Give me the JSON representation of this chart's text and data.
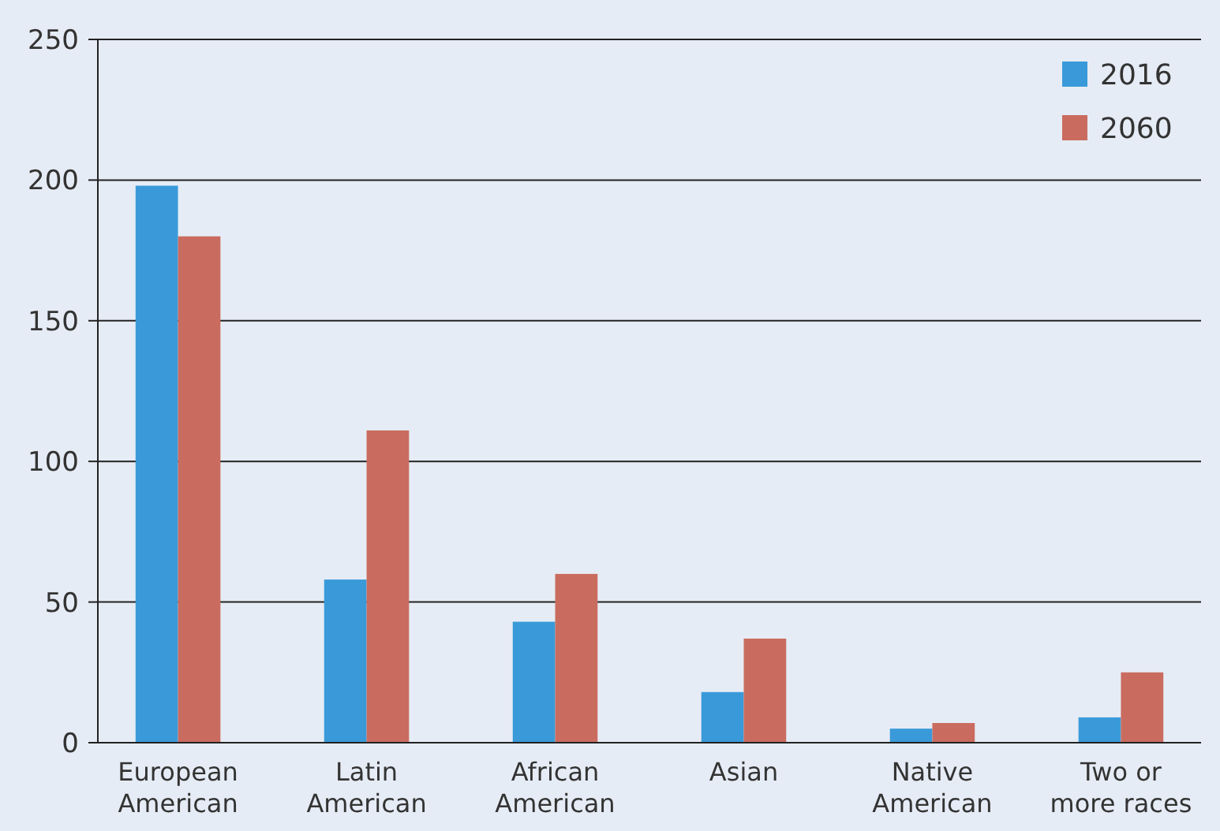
{
  "chart_data": {
    "type": "bar",
    "categories": [
      "European American",
      "Latin American",
      "African American",
      "Asian",
      "Native American",
      "Two or more races"
    ],
    "series": [
      {
        "name": "2016",
        "color": "#3a9ad9",
        "values": [
          198,
          58,
          43,
          18,
          5,
          9
        ]
      },
      {
        "name": "2060",
        "color": "#c96c5f",
        "values": [
          180,
          111,
          60,
          37,
          7,
          25
        ]
      }
    ],
    "ylim": [
      0,
      250
    ],
    "yticks": [
      0,
      50,
      100,
      150,
      200,
      250
    ],
    "grid": "y",
    "legend": "top right"
  }
}
